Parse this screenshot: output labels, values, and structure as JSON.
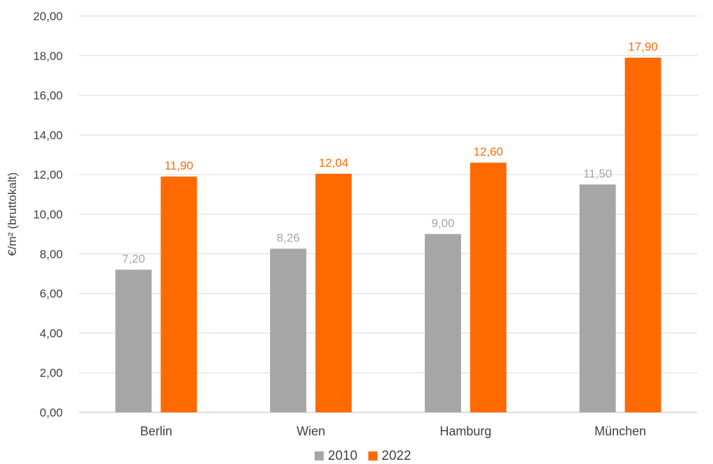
{
  "chart_data": {
    "type": "bar",
    "categories": [
      "Berlin",
      "Wien",
      "Hamburg",
      "München"
    ],
    "series": [
      {
        "name": "2010",
        "values": [
          7.2,
          8.26,
          9.0,
          11.5
        ],
        "color": "#A6A6A6",
        "label_color": "#A6A6A6"
      },
      {
        "name": "2022",
        "values": [
          11.9,
          12.04,
          12.6,
          17.9
        ],
        "color": "#FF6A00",
        "label_color": "#FF6A00"
      }
    ],
    "data_labels": [
      [
        "7,20",
        "8,26",
        "9,00",
        "11,50"
      ],
      [
        "11,90",
        "12,04",
        "12,60",
        "17,90"
      ]
    ],
    "title": "",
    "xlabel": "",
    "ylabel": "€/m²  (bruttokalt)",
    "ylim": [
      0,
      20
    ],
    "yticks": [
      0,
      2,
      4,
      6,
      8,
      10,
      12,
      14,
      16,
      18,
      20
    ],
    "ytick_labels": [
      "0,00",
      "2,00",
      "4,00",
      "6,00",
      "8,00",
      "10,00",
      "12,00",
      "14,00",
      "16,00",
      "18,00",
      "20,00"
    ],
    "grid": true,
    "legend_position": "bottom"
  }
}
